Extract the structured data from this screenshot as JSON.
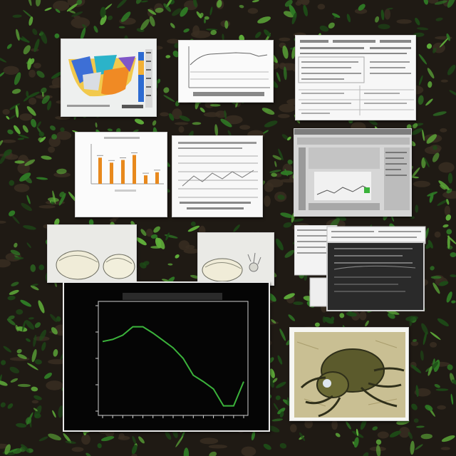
{
  "scene": {
    "description_free": true,
    "colors": {
      "soil_dark": "#1f1a14",
      "soil_mid": "#3a2e22",
      "leaf_dark": "#1d4a17",
      "leaf_mid": "#2f7a25",
      "leaf_light": "#5fae3a",
      "paper": "#f4f4f2",
      "screen_dark": "#050505",
      "curve_green": "#3bb33b"
    }
  },
  "cards": {
    "heatmap_card": {
      "icon": "heatmap-thumbnail-icon"
    },
    "line_card": {
      "icon": "line-chart-thumbnail-icon"
    },
    "table_card": {
      "icon": "table-document-icon"
    },
    "bar_card": {
      "icon": "bar-chart-thumbnail-icon"
    },
    "grid_card": {
      "icon": "grid-chart-thumbnail-icon"
    },
    "window_card": {
      "icon": "software-window-icon"
    },
    "sketch_card_a": {
      "icon": "seed-sketch-icon"
    },
    "sketch_card_b": {
      "icon": "seed-sketch-icon"
    },
    "stack_card": {
      "icon": "stacked-documents-icon"
    },
    "beetle_card": {
      "icon": "beetle-illustration-icon"
    }
  },
  "main_plot": {
    "title": "",
    "xlabel": "",
    "ylabel": "",
    "curve_color": "#3bb33b"
  },
  "chart_data": [
    {
      "type": "line",
      "title": "",
      "xlabel": "",
      "ylabel": "",
      "x": [
        0,
        1,
        2,
        3,
        4,
        5,
        6,
        7,
        8,
        9,
        10,
        11,
        12,
        13,
        14
      ],
      "series": [
        {
          "values": [
            0.66,
            0.68,
            0.72,
            0.8,
            0.8,
            0.74,
            0.67,
            0.6,
            0.5,
            0.34,
            0.28,
            0.21,
            0.05,
            0.05,
            0.28
          ]
        }
      ],
      "ylim": [
        0,
        1
      ],
      "grid": false,
      "legend": "none"
    },
    {
      "type": "bar",
      "title": "",
      "categories": [
        "1",
        "2",
        "3",
        "4",
        "5",
        "6"
      ],
      "values": [
        0.68,
        0.55,
        0.62,
        0.75,
        0.22,
        0.3
      ],
      "ylim": [
        0,
        1
      ]
    }
  ]
}
